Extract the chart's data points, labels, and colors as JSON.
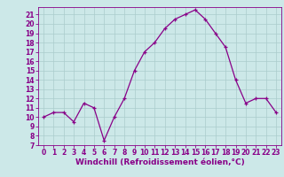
{
  "x": [
    0,
    1,
    2,
    3,
    4,
    5,
    6,
    7,
    8,
    9,
    10,
    11,
    12,
    13,
    14,
    15,
    16,
    17,
    18,
    19,
    20,
    21,
    22,
    23
  ],
  "y": [
    10,
    10.5,
    10.5,
    9.5,
    11.5,
    11,
    7.5,
    10,
    12,
    15,
    17,
    18,
    19.5,
    20.5,
    21,
    21.5,
    20.5,
    19,
    17.5,
    14,
    11.5,
    12,
    12,
    10.5
  ],
  "line_color": "#880088",
  "marker": "+",
  "bg_color": "#cce8e8",
  "grid_color": "#aacccc",
  "xlabel": "Windchill (Refroidissement éolien,°C)",
  "xlim": [
    -0.5,
    23.5
  ],
  "ylim": [
    7,
    21.8
  ],
  "xticks": [
    0,
    1,
    2,
    3,
    4,
    5,
    6,
    7,
    8,
    9,
    10,
    11,
    12,
    13,
    14,
    15,
    16,
    17,
    18,
    19,
    20,
    21,
    22,
    23
  ],
  "yticks": [
    7,
    8,
    9,
    10,
    11,
    12,
    13,
    14,
    15,
    16,
    17,
    18,
    19,
    20,
    21
  ],
  "tick_fontsize": 5.5,
  "xlabel_fontsize": 6.5,
  "line_width": 0.9,
  "marker_size": 3,
  "marker_edge_width": 0.9
}
